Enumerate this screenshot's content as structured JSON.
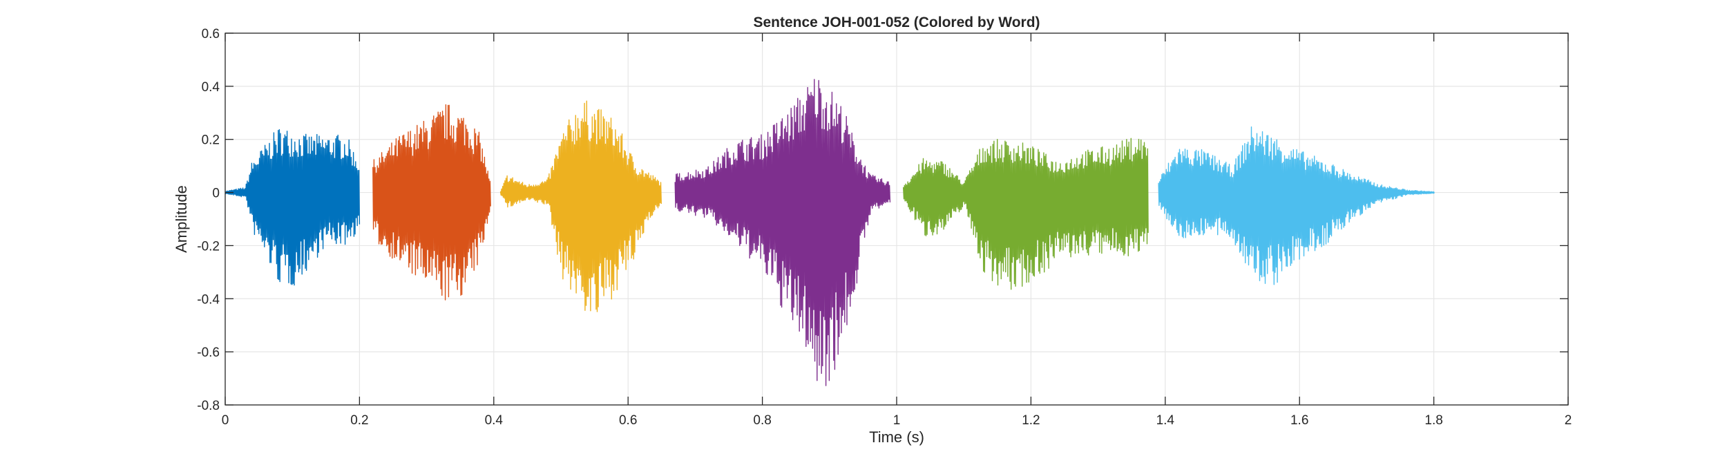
{
  "chart_data": {
    "type": "line",
    "title": "Sentence JOH-001-052 (Colored by Word)",
    "xlabel": "Time (s)",
    "ylabel": "Amplitude",
    "xlim": [
      0,
      2
    ],
    "ylim": [
      -0.8,
      0.6
    ],
    "xticks": [
      0,
      0.2,
      0.4,
      0.6,
      0.8,
      1,
      1.2,
      1.4,
      1.6,
      1.8,
      2
    ],
    "xtick_labels": [
      "0",
      "0.2",
      "0.4",
      "0.6",
      "0.8",
      "1",
      "1.2",
      "1.4",
      "1.6",
      "1.8",
      "2"
    ],
    "yticks": [
      0.6,
      0.4,
      0.2,
      0,
      -0.2,
      -0.4,
      -0.6,
      -0.8
    ],
    "ytick_labels": [
      "0.6",
      "0.4",
      "0.2",
      "0",
      "-0.2",
      "-0.4",
      "-0.6",
      "-0.8"
    ],
    "grid": true,
    "legend": false,
    "series": [
      {
        "color": "#0072BD",
        "start": 0.0,
        "end": 0.2,
        "envelope": [
          [
            0.0,
            0.005,
            -0.005
          ],
          [
            0.03,
            0.02,
            -0.02
          ],
          [
            0.04,
            0.12,
            -0.15
          ],
          [
            0.08,
            0.25,
            -0.35
          ],
          [
            0.1,
            0.24,
            -0.36
          ],
          [
            0.12,
            0.22,
            -0.3
          ],
          [
            0.15,
            0.22,
            -0.2
          ],
          [
            0.18,
            0.22,
            -0.2
          ],
          [
            0.2,
            0.12,
            -0.14
          ]
        ]
      },
      {
        "color": "#D95319",
        "start": 0.22,
        "end": 0.395,
        "envelope": [
          [
            0.22,
            0.12,
            -0.18
          ],
          [
            0.26,
            0.22,
            -0.28
          ],
          [
            0.3,
            0.28,
            -0.36
          ],
          [
            0.33,
            0.34,
            -0.42
          ],
          [
            0.36,
            0.3,
            -0.38
          ],
          [
            0.38,
            0.22,
            -0.25
          ],
          [
            0.395,
            0.04,
            -0.05
          ]
        ]
      },
      {
        "color": "#EDB120",
        "start": 0.41,
        "end": 0.65,
        "envelope": [
          [
            0.41,
            0.005,
            -0.01
          ],
          [
            0.42,
            0.07,
            -0.06
          ],
          [
            0.45,
            0.03,
            -0.03
          ],
          [
            0.48,
            0.05,
            -0.05
          ],
          [
            0.5,
            0.22,
            -0.32
          ],
          [
            0.53,
            0.36,
            -0.44
          ],
          [
            0.55,
            0.33,
            -0.5
          ],
          [
            0.58,
            0.28,
            -0.38
          ],
          [
            0.61,
            0.12,
            -0.26
          ],
          [
            0.63,
            0.08,
            -0.1
          ],
          [
            0.65,
            0.04,
            -0.05
          ]
        ]
      },
      {
        "color": "#7E2F8E",
        "start": 0.67,
        "end": 0.99,
        "envelope": [
          [
            0.67,
            0.07,
            -0.07
          ],
          [
            0.72,
            0.1,
            -0.1
          ],
          [
            0.76,
            0.2,
            -0.2
          ],
          [
            0.8,
            0.22,
            -0.3
          ],
          [
            0.84,
            0.32,
            -0.5
          ],
          [
            0.87,
            0.42,
            -0.62
          ],
          [
            0.88,
            0.46,
            -0.76
          ],
          [
            0.9,
            0.4,
            -0.72
          ],
          [
            0.92,
            0.33,
            -0.58
          ],
          [
            0.94,
            0.18,
            -0.35
          ],
          [
            0.96,
            0.07,
            -0.08
          ],
          [
            0.99,
            0.04,
            -0.04
          ]
        ]
      },
      {
        "color": "#77AC30",
        "start": 1.01,
        "end": 1.375,
        "envelope": [
          [
            1.01,
            0.03,
            -0.03
          ],
          [
            1.04,
            0.13,
            -0.17
          ],
          [
            1.07,
            0.12,
            -0.15
          ],
          [
            1.1,
            0.04,
            -0.05
          ],
          [
            1.13,
            0.2,
            -0.32
          ],
          [
            1.17,
            0.2,
            -0.38
          ],
          [
            1.2,
            0.18,
            -0.34
          ],
          [
            1.24,
            0.12,
            -0.26
          ],
          [
            1.28,
            0.16,
            -0.24
          ],
          [
            1.32,
            0.18,
            -0.24
          ],
          [
            1.36,
            0.22,
            -0.24
          ],
          [
            1.375,
            0.2,
            -0.2
          ]
        ]
      },
      {
        "color": "#4DBEEE",
        "start": 1.39,
        "end": 1.8,
        "envelope": [
          [
            1.39,
            0.05,
            -0.05
          ],
          [
            1.42,
            0.18,
            -0.18
          ],
          [
            1.46,
            0.16,
            -0.16
          ],
          [
            1.5,
            0.1,
            -0.18
          ],
          [
            1.53,
            0.26,
            -0.34
          ],
          [
            1.56,
            0.22,
            -0.36
          ],
          [
            1.6,
            0.16,
            -0.26
          ],
          [
            1.64,
            0.12,
            -0.2
          ],
          [
            1.68,
            0.07,
            -0.1
          ],
          [
            1.72,
            0.03,
            -0.04
          ],
          [
            1.76,
            0.01,
            -0.01
          ],
          [
            1.8,
            0.003,
            -0.003
          ]
        ]
      }
    ]
  }
}
